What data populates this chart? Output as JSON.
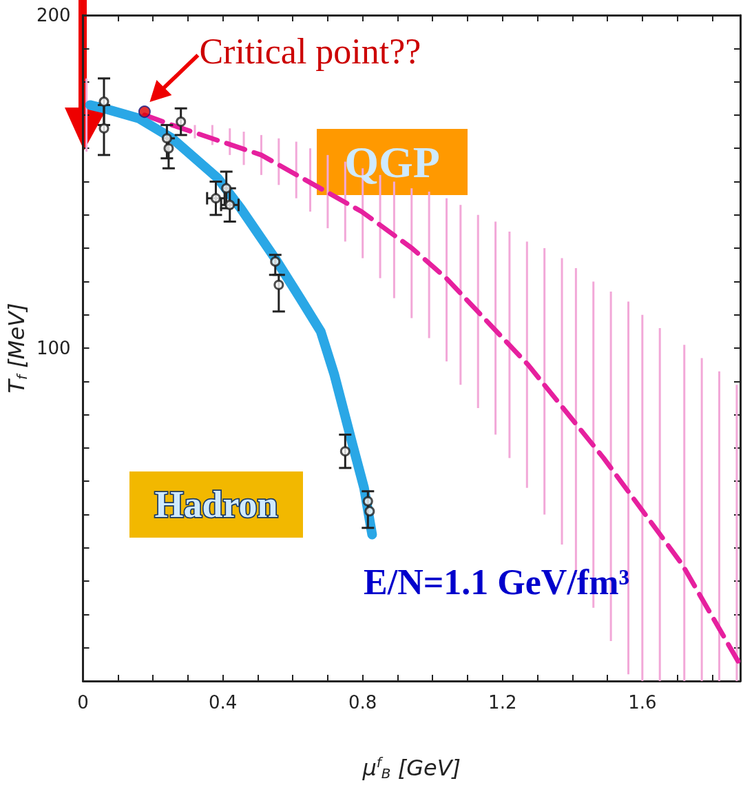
{
  "chart_data": {
    "type": "line",
    "xlabel": "μ$^{f}$$_{B}$ [GeV]",
    "ylabel": "T$_{f}$ [MeV]",
    "xlim": [
      0,
      1.88
    ],
    "ylim": [
      0,
      200
    ],
    "xticks": [
      0,
      {
        "value": 0.1,
        "label": null
      },
      {
        "value": 0.2,
        "label": null
      },
      {
        "value": 0.3,
        "label": null
      },
      0.4,
      {
        "value": 0.5,
        "label": null
      },
      {
        "value": 0.6,
        "label": null
      },
      {
        "value": 0.7,
        "label": null
      },
      0.8,
      {
        "value": 0.9,
        "label": null
      },
      {
        "value": 1.0,
        "label": null
      },
      {
        "value": 1.1,
        "label": null
      },
      1.2,
      {
        "value": 1.3,
        "label": null
      },
      {
        "value": 1.4,
        "label": null
      },
      {
        "value": 1.5,
        "label": null
      },
      1.6,
      {
        "value": 1.7,
        "label": null
      },
      {
        "value": 1.8,
        "label": null
      }
    ],
    "yticks": [
      {
        "value": 0,
        "label": null
      },
      {
        "value": 10,
        "label": null
      },
      {
        "value": 20,
        "label": null
      },
      {
        "value": 30,
        "label": null
      },
      {
        "value": 40,
        "label": null
      },
      {
        "value": 50,
        "label": null
      },
      {
        "value": 60,
        "label": null
      },
      {
        "value": 70,
        "label": null
      },
      {
        "value": 80,
        "label": null
      },
      {
        "value": 90,
        "label": null
      },
      100,
      {
        "value": 110,
        "label": null
      },
      {
        "value": 120,
        "label": null
      },
      {
        "value": 130,
        "label": null
      },
      {
        "value": 140,
        "label": null
      },
      {
        "value": 150,
        "label": null
      },
      {
        "value": 160,
        "label": null
      },
      {
        "value": 170,
        "label": null
      },
      {
        "value": 180,
        "label": null
      },
      {
        "value": 190,
        "label": null
      },
      200
    ],
    "grid": false,
    "series": [
      {
        "type": "bar",
        "color": "#f2a8d8",
        "x": [
          0.01,
          0.32,
          0.37,
          0.42,
          0.46,
          0.51,
          0.56,
          0.61,
          0.65,
          0.7,
          0.75,
          0.8,
          0.85,
          0.89,
          0.94,
          0.99,
          1.04,
          1.08,
          1.13,
          1.18,
          1.22,
          1.27,
          1.32,
          1.37,
          1.41,
          1.46,
          1.51,
          1.56,
          1.6,
          1.65,
          1.72,
          1.77,
          1.82,
          1.87
        ],
        "base": [
          159,
          163,
          161,
          158,
          155,
          152,
          149,
          145,
          141,
          136,
          132,
          127,
          121,
          115,
          109,
          103,
          96,
          89,
          82,
          74,
          67,
          58,
          50,
          41,
          32,
          22,
          12,
          2,
          0,
          0,
          0,
          0,
          0,
          0
        ],
        "values": [
          22,
          4,
          6,
          8,
          10,
          12,
          14,
          17,
          19,
          22,
          24,
          27,
          31,
          35,
          39,
          44,
          49,
          54,
          58,
          64,
          68,
          74,
          80,
          86,
          92,
          98,
          105,
          112,
          110,
          106,
          101,
          97,
          93,
          89
        ]
      },
      {
        "color": "#e6209e",
        "line_style": "dashed",
        "marker": "none",
        "x": [
          0.176,
          0.255,
          0.51,
          0.797,
          0.941,
          1.039,
          1.273,
          1.489,
          1.714,
          1.879
        ],
        "values": [
          170,
          167,
          158,
          141,
          130,
          121,
          95,
          67,
          35,
          5
        ]
      },
      {
        "color": "#2aa7e6",
        "line_style": "solid",
        "marker": "none",
        "x": [
          0.02,
          0.06,
          0.16,
          0.255,
          0.386,
          0.451,
          0.549,
          0.621,
          0.68,
          0.719,
          0.771,
          0.804,
          0.827
        ],
        "values": [
          173,
          172,
          169,
          163,
          151,
          142,
          127,
          115,
          105,
          92,
          71,
          58,
          44
        ]
      },
      {
        "type": "scatter",
        "color": "#222222",
        "marker": "circle",
        "x": [
          0.06,
          0.06,
          0.24,
          0.245,
          0.28,
          0.38,
          0.41,
          0.42,
          0.55,
          0.56,
          0.75,
          0.815,
          0.82
        ],
        "values": [
          174,
          166,
          163,
          160,
          168,
          145,
          148,
          143,
          126,
          119,
          69,
          54,
          51
        ],
        "errors": [
          [
            167,
            181
          ],
          [
            158,
            173
          ],
          [
            157,
            167
          ],
          [
            154,
            163
          ],
          [
            164,
            172
          ],
          [
            140,
            150
          ],
          [
            142,
            153
          ],
          [
            138,
            148
          ],
          [
            122,
            128
          ],
          [
            111,
            122
          ],
          [
            64,
            74
          ],
          [
            46,
            57
          ],
          null
        ],
        "xerrors": [
          null,
          null,
          null,
          null,
          null,
          0.025,
          null,
          0.025,
          null,
          null,
          null,
          null,
          null
        ]
      },
      {
        "type": "scatter",
        "color": "#dd0000",
        "marker": "circle",
        "x": [
          0.176
        ],
        "values": [
          171
        ]
      }
    ],
    "annotations": [
      {
        "text": "Critical point??",
        "x": 0.176,
        "y": 171
      },
      "QGP",
      "Hadron",
      "E/N=1.1 GeV/fm³"
    ]
  }
}
